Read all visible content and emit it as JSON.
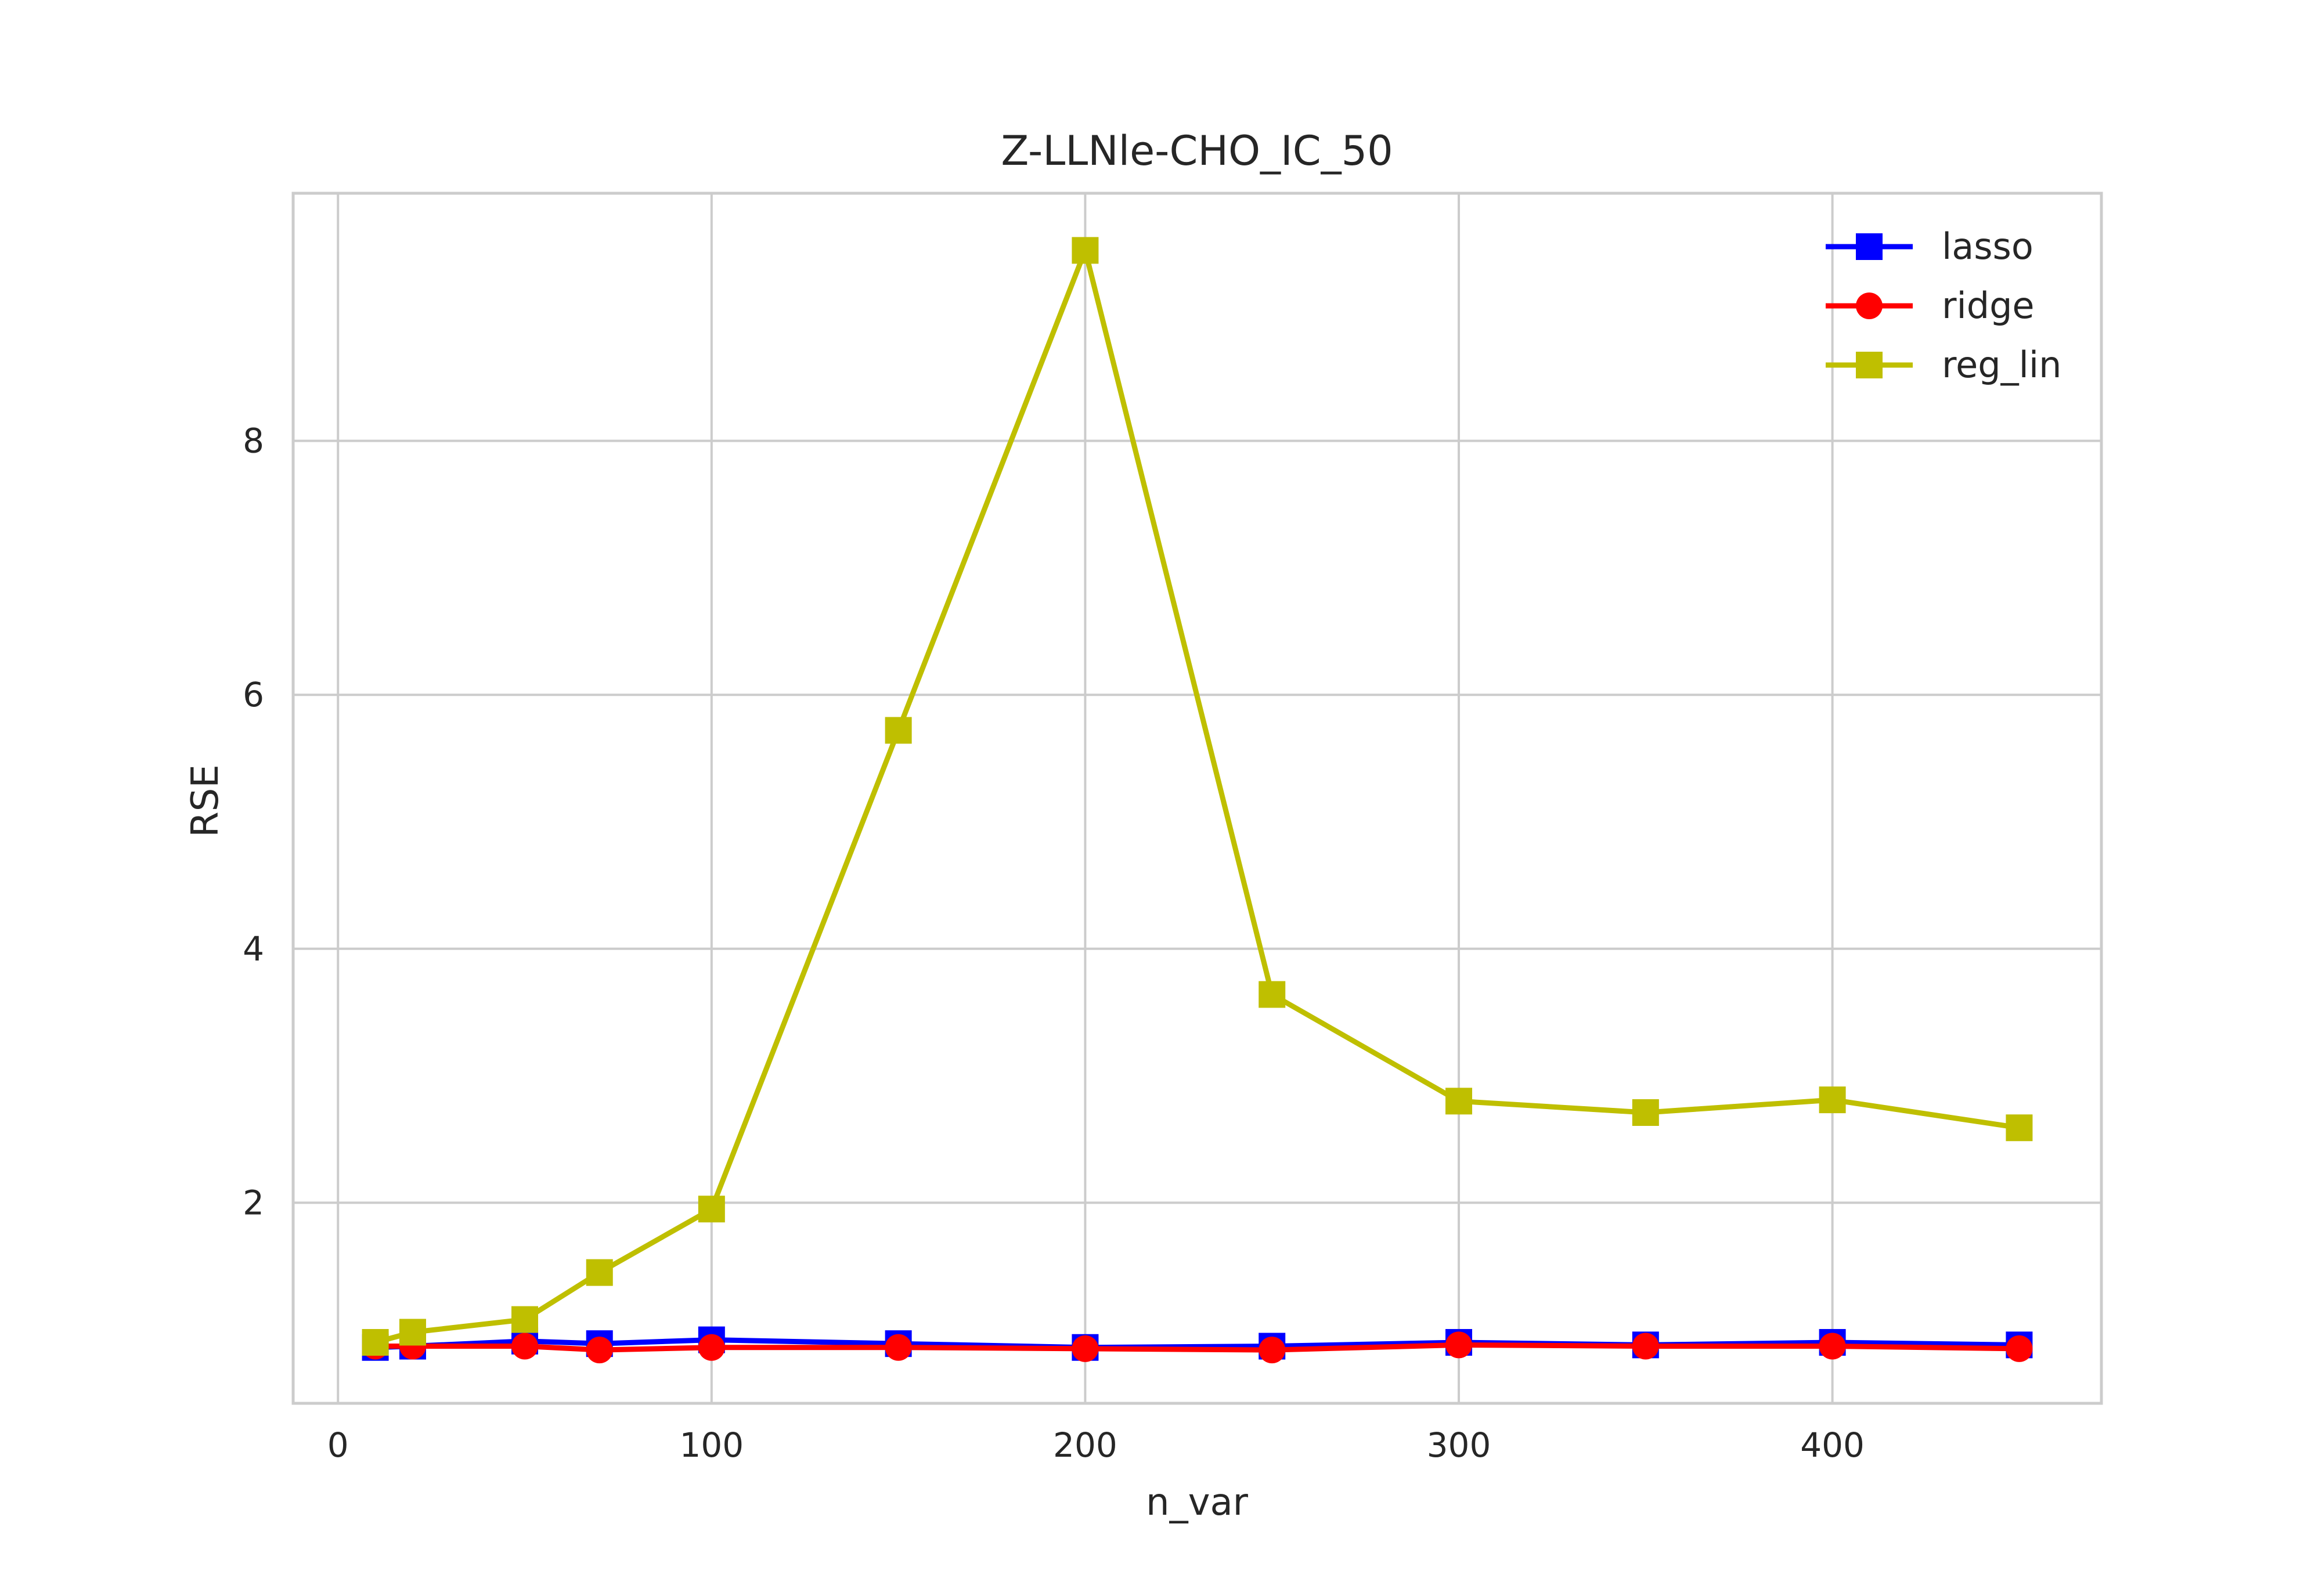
{
  "chart_data": {
    "type": "line",
    "title": "Z-LLNle-CHO_IC_50",
    "xlabel": "n_var",
    "ylabel": "RSE",
    "xlim": [
      -12,
      472
    ],
    "ylim": [
      0.42,
      9.95
    ],
    "xticks": [
      0,
      100,
      200,
      300,
      400
    ],
    "yticks": [
      2,
      4,
      6,
      8
    ],
    "grid": true,
    "legend_position": "top-right",
    "x": [
      10,
      20,
      50,
      70,
      100,
      150,
      200,
      250,
      300,
      350,
      400,
      450
    ],
    "series": [
      {
        "name": "lasso",
        "color": "#0000ff",
        "marker": "square",
        "values": [
          0.86,
          0.87,
          0.91,
          0.89,
          0.92,
          0.89,
          0.86,
          0.87,
          0.9,
          0.88,
          0.9,
          0.88
        ]
      },
      {
        "name": "ridge",
        "color": "#ff0000",
        "marker": "circle",
        "values": [
          0.87,
          0.87,
          0.87,
          0.84,
          0.86,
          0.86,
          0.85,
          0.84,
          0.88,
          0.87,
          0.87,
          0.85
        ]
      },
      {
        "name": "reg_lin",
        "color": "#bfbf00",
        "marker": "square",
        "values": [
          0.9,
          0.98,
          1.08,
          1.45,
          1.95,
          5.72,
          9.5,
          3.64,
          2.8,
          2.71,
          2.81,
          2.59
        ]
      }
    ]
  }
}
